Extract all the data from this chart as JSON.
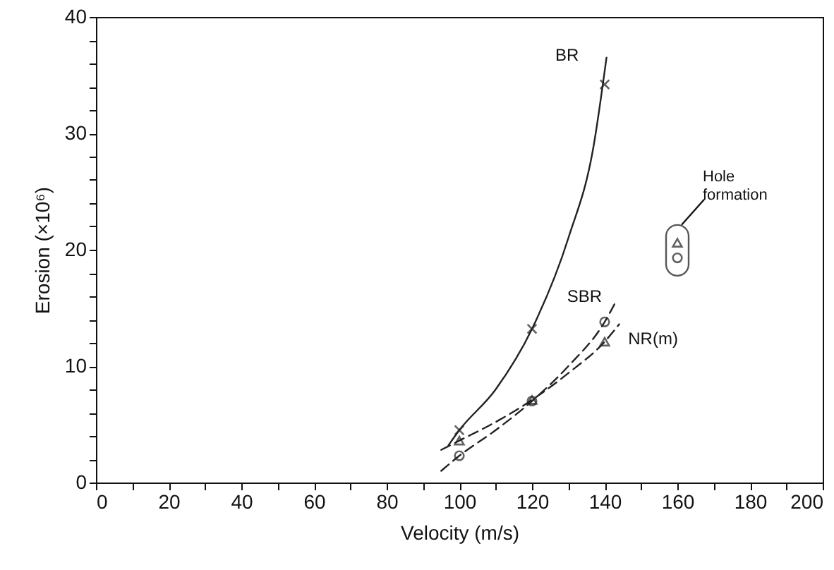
{
  "chart_data": {
    "type": "scatter",
    "xlabel": "Velocity (m/s)",
    "ylabel": "Erosion (×10⁶)",
    "xlim": [
      0,
      200
    ],
    "ylim": [
      0,
      40
    ],
    "xticks": [
      0,
      {
        "value": 10,
        "label": null
      },
      20,
      {
        "value": 30,
        "label": null
      },
      40,
      {
        "value": 50,
        "label": null
      },
      60,
      {
        "value": 70,
        "label": null
      },
      80,
      {
        "value": 90,
        "label": null
      },
      100,
      {
        "value": 110,
        "label": null
      },
      120,
      {
        "value": 130,
        "label": null
      },
      140,
      {
        "value": 150,
        "label": null
      },
      160,
      {
        "value": 170,
        "label": null
      },
      180,
      {
        "value": 190,
        "label": null
      },
      200
    ],
    "yticks": [
      0,
      {
        "value": 2,
        "label": null
      },
      {
        "value": 4,
        "label": null
      },
      {
        "value": 6,
        "label": null
      },
      {
        "value": 8,
        "label": null
      },
      10,
      {
        "value": 12,
        "label": null
      },
      {
        "value": 14,
        "label": null
      },
      {
        "value": 16,
        "label": null
      },
      {
        "value": 18,
        "label": null
      },
      20,
      {
        "value": 22,
        "label": null
      },
      {
        "value": 24,
        "label": null
      },
      {
        "value": 26,
        "label": null
      },
      {
        "value": 28,
        "label": null
      },
      30,
      {
        "value": 32,
        "label": null
      },
      {
        "value": 34,
        "label": null
      },
      {
        "value": 36,
        "label": null
      },
      {
        "value": 38,
        "label": null
      },
      40
    ],
    "series": [
      {
        "type": "line",
        "name": "BR",
        "color": "#222222",
        "line_style": "solid",
        "marker": "none",
        "x": [
          97,
          100,
          110,
          120,
          130,
          137,
          140.5
        ],
        "values": [
          3.2,
          4.5,
          8,
          13.2,
          21,
          29,
          36.5
        ]
      },
      {
        "color": "#222222",
        "marker": "cross",
        "x": [
          100,
          120,
          140
        ],
        "values": [
          4.5,
          13.2,
          34.2
        ]
      },
      {
        "type": "line",
        "name": "SBR",
        "color": "#222222",
        "line_style": "dashed",
        "marker": "none",
        "x": [
          95,
          100,
          110,
          120,
          130,
          140,
          143
        ],
        "values": [
          1,
          2.3,
          4.5,
          7,
          10,
          13.8,
          15.5
        ]
      },
      {
        "color": "#222222",
        "marker": "circle",
        "x": [
          100,
          120,
          140,
          160
        ],
        "values": [
          2.3,
          7,
          13.8,
          19.3
        ]
      },
      {
        "type": "line",
        "name": "NR(m)",
        "color": "#222222",
        "line_style": "dashed",
        "marker": "none",
        "x": [
          95,
          100,
          110,
          120,
          130,
          140,
          144
        ],
        "values": [
          2.8,
          3.6,
          5.2,
          7.1,
          9.4,
          12.1,
          13.6
        ]
      },
      {
        "color": "#222222",
        "marker": "triangle",
        "x": [
          100,
          120,
          140,
          160
        ],
        "values": [
          3.6,
          7.1,
          12.1,
          20.6
        ]
      }
    ],
    "annotations": [
      "Hole formation"
    ]
  }
}
